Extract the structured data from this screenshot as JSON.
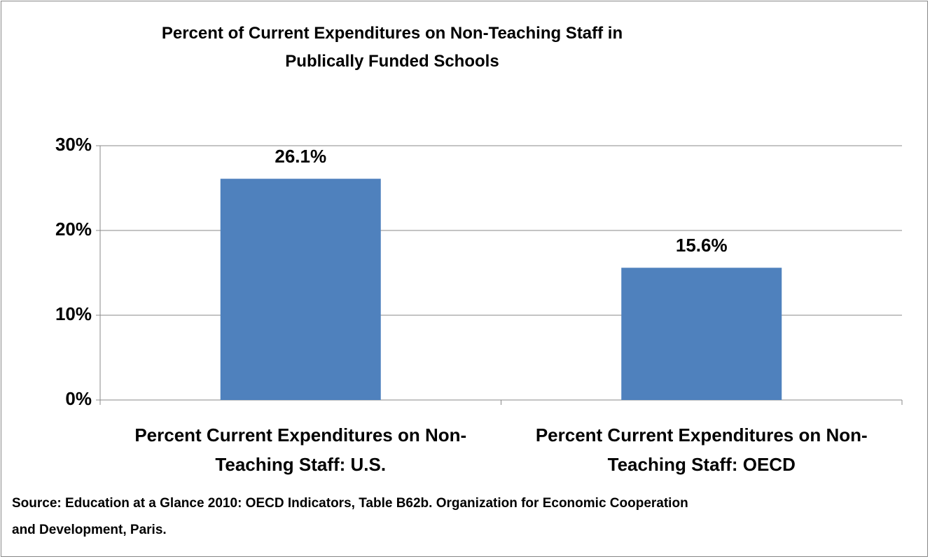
{
  "chart_data": {
    "type": "bar",
    "title": "Percent of Current Expenditures on Non-Teaching Staff in Publically Funded Schools",
    "categories": [
      "Percent Current Expenditures on Non-Teaching Staff: U.S.",
      "Percent Current Expenditures on Non-Teaching Staff: OECD"
    ],
    "values": [
      26.1,
      15.6
    ],
    "value_labels": [
      "26.1%",
      "15.6%"
    ],
    "color": "#4f81bd",
    "ylim": [
      0,
      30
    ],
    "yticks": [
      {
        "value": 0,
        "label": "0%"
      },
      {
        "value": 10,
        "label": "10%"
      },
      {
        "value": 20,
        "label": "20%"
      },
      {
        "value": 30,
        "label": "30%"
      }
    ],
    "grid": true,
    "source": "Source:  Education at a Glance 2010: OECD Indicators, Table B62b. Organization for Economic Cooperation and Development, Paris."
  }
}
